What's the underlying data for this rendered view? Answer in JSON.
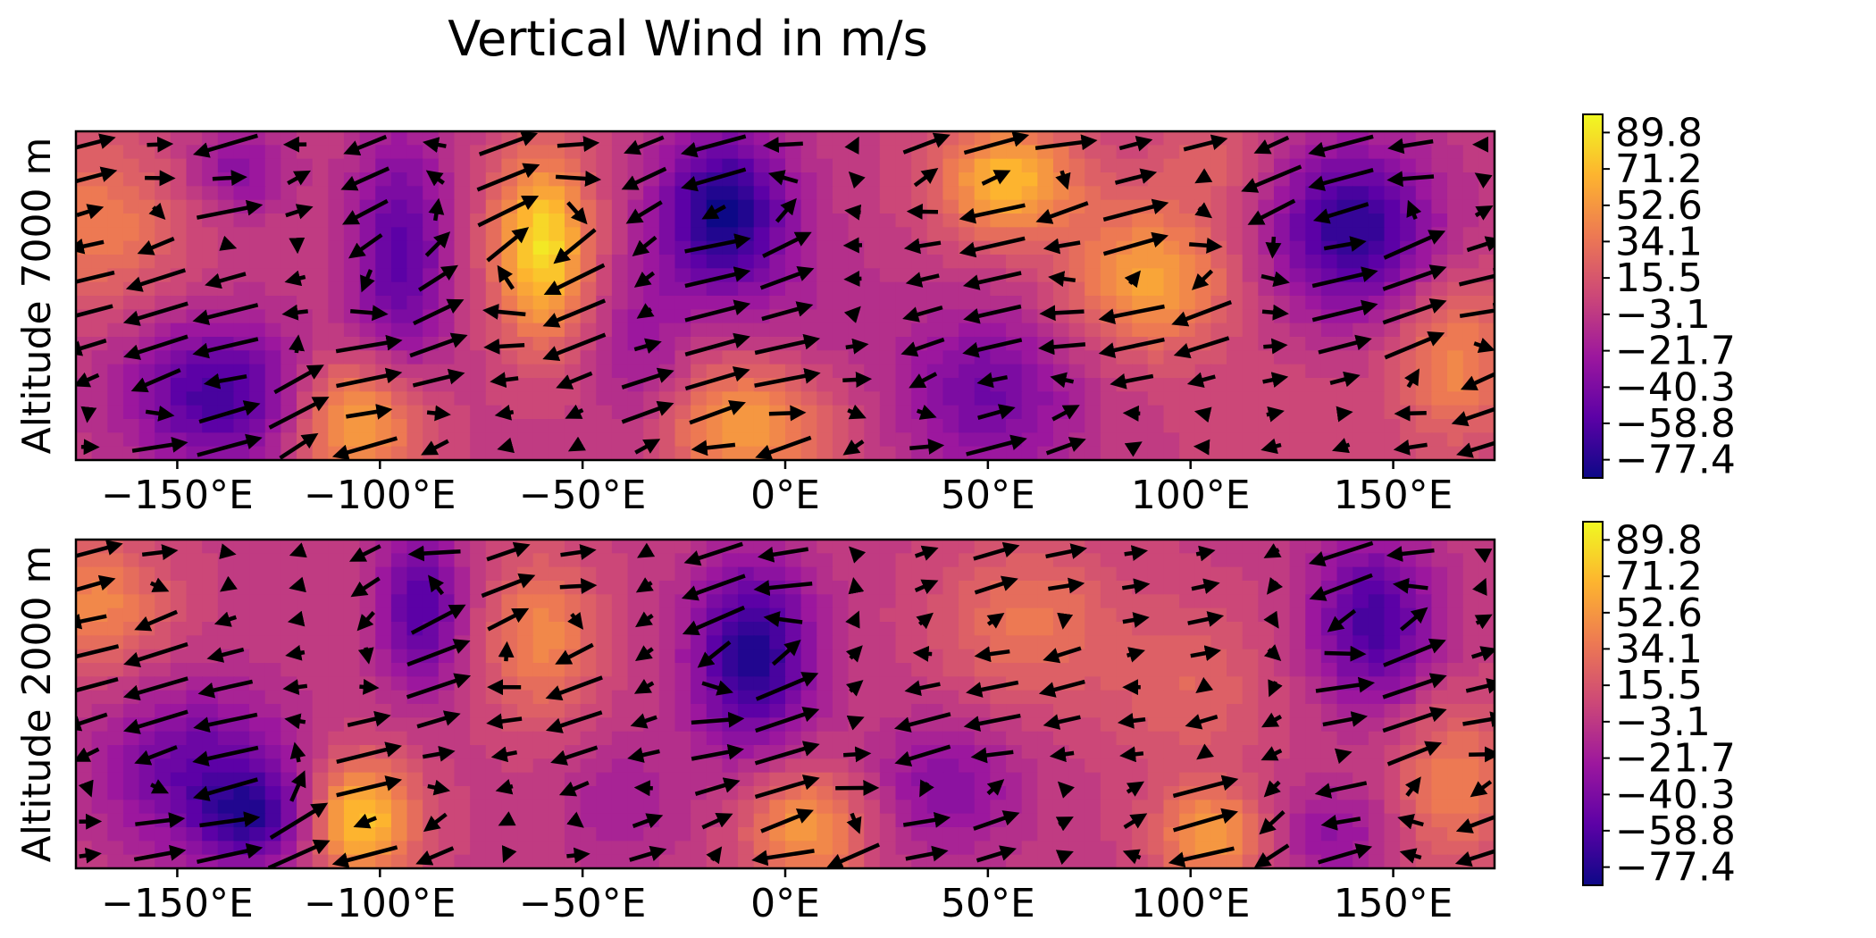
{
  "figure": {
    "title": "Vertical Wind in m/s"
  },
  "chart_data": {
    "type": "heatmap",
    "title": "Vertical Wind in m/s",
    "colormap": "plasma",
    "colormap_stops": [
      "#0d0887",
      "#5c01a6",
      "#9c179e",
      "#cc4778",
      "#ed7953",
      "#fdb42f",
      "#f0f921"
    ],
    "vector_color": "#000000",
    "xlim": [
      -175,
      175
    ],
    "xticks": [
      -150,
      -100,
      -50,
      0,
      50,
      100,
      150
    ],
    "xtick_labels": [
      "−150°E",
      "−100°E",
      "−50°E",
      "0°E",
      "50°E",
      "100°E",
      "150°E"
    ],
    "colorbar": {
      "range": [
        -86.7,
        99.1
      ],
      "ticks": [
        89.8,
        71.2,
        52.6,
        34.1,
        15.5,
        -3.1,
        -21.7,
        -40.3,
        -58.8,
        -77.4
      ],
      "tick_labels": [
        "89.8",
        "71.2",
        "52.6",
        "34.1",
        "15.5",
        "−3.1",
        "−21.7",
        "−40.3",
        "−58.8",
        "−77.4"
      ]
    },
    "panels": [
      {
        "ylabel": "Altitude 7000 m",
        "field_features": [
          {
            "lon": -170,
            "lat": 0.72,
            "value": 40,
            "rx": 22,
            "ry": 0.25
          },
          {
            "lon": -140,
            "lat": 0.2,
            "value": -65,
            "rx": 22,
            "ry": 0.22
          },
          {
            "lon": -135,
            "lat": 0.88,
            "value": -35,
            "rx": 12,
            "ry": 0.13
          },
          {
            "lon": -105,
            "lat": 0.12,
            "value": 65,
            "rx": 16,
            "ry": 0.2
          },
          {
            "lon": -95,
            "lat": 0.62,
            "value": -55,
            "rx": 12,
            "ry": 0.38
          },
          {
            "lon": -60,
            "lat": 0.65,
            "value": 88,
            "rx": 12,
            "ry": 0.28
          },
          {
            "lon": -35,
            "lat": 0.32,
            "value": -25,
            "rx": 12,
            "ry": 0.3
          },
          {
            "lon": -15,
            "lat": 0.75,
            "value": -85,
            "rx": 16,
            "ry": 0.25
          },
          {
            "lon": -10,
            "lat": 0.1,
            "value": 55,
            "rx": 22,
            "ry": 0.2
          },
          {
            "lon": 10,
            "lat": 0.45,
            "value": -10,
            "rx": 18,
            "ry": 0.25
          },
          {
            "lon": 50,
            "lat": 0.2,
            "value": -45,
            "rx": 22,
            "ry": 0.25
          },
          {
            "lon": 55,
            "lat": 0.85,
            "value": 70,
            "rx": 18,
            "ry": 0.18
          },
          {
            "lon": 90,
            "lat": 0.55,
            "value": 60,
            "rx": 20,
            "ry": 0.22
          },
          {
            "lon": 105,
            "lat": 0.9,
            "value": 20,
            "rx": 15,
            "ry": 0.15
          },
          {
            "lon": 140,
            "lat": 0.7,
            "value": -75,
            "rx": 20,
            "ry": 0.25
          },
          {
            "lon": 165,
            "lat": 0.3,
            "value": 45,
            "rx": 15,
            "ry": 0.25
          },
          {
            "lon": 120,
            "lat": 0.1,
            "value": 10,
            "rx": 20,
            "ry": 0.2
          }
        ]
      },
      {
        "ylabel": "Altitude 2000 m",
        "field_features": [
          {
            "lon": -170,
            "lat": 0.8,
            "value": 45,
            "rx": 18,
            "ry": 0.2
          },
          {
            "lon": -145,
            "lat": 0.3,
            "value": -50,
            "rx": 24,
            "ry": 0.25
          },
          {
            "lon": -130,
            "lat": 0.15,
            "value": -55,
            "rx": 15,
            "ry": 0.15
          },
          {
            "lon": -105,
            "lat": 0.15,
            "value": 80,
            "rx": 14,
            "ry": 0.18
          },
          {
            "lon": -90,
            "lat": 0.8,
            "value": -60,
            "rx": 10,
            "ry": 0.25
          },
          {
            "lon": -60,
            "lat": 0.7,
            "value": 45,
            "rx": 14,
            "ry": 0.25
          },
          {
            "lon": -40,
            "lat": 0.2,
            "value": -20,
            "rx": 15,
            "ry": 0.2
          },
          {
            "lon": -8,
            "lat": 0.65,
            "value": -80,
            "rx": 15,
            "ry": 0.28
          },
          {
            "lon": 5,
            "lat": 0.12,
            "value": 55,
            "rx": 15,
            "ry": 0.18
          },
          {
            "lon": 40,
            "lat": 0.25,
            "value": -35,
            "rx": 18,
            "ry": 0.2
          },
          {
            "lon": 60,
            "lat": 0.75,
            "value": 35,
            "rx": 22,
            "ry": 0.25
          },
          {
            "lon": 100,
            "lat": 0.55,
            "value": 25,
            "rx": 20,
            "ry": 0.25
          },
          {
            "lon": 105,
            "lat": 0.1,
            "value": 55,
            "rx": 14,
            "ry": 0.15
          },
          {
            "lon": 145,
            "lat": 0.75,
            "value": -65,
            "rx": 15,
            "ry": 0.25
          },
          {
            "lon": 165,
            "lat": 0.25,
            "value": 40,
            "rx": 15,
            "ry": 0.25
          },
          {
            "lon": 135,
            "lat": 0.1,
            "value": -30,
            "rx": 15,
            "ry": 0.15
          }
        ]
      }
    ]
  }
}
